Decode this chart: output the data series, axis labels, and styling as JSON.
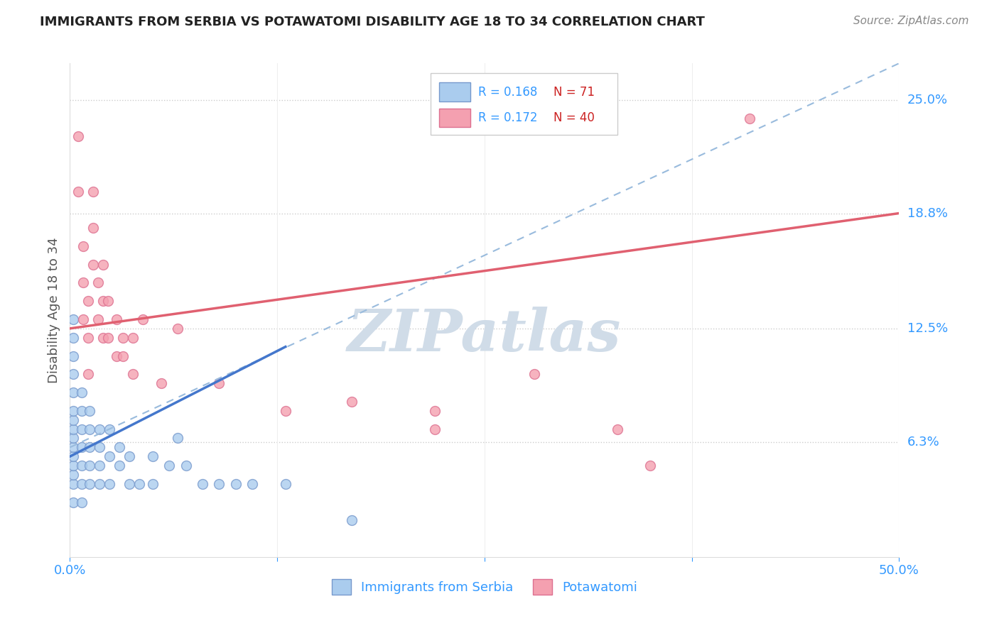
{
  "title": "IMMIGRANTS FROM SERBIA VS POTAWATOMI DISABILITY AGE 18 TO 34 CORRELATION CHART",
  "source": "Source: ZipAtlas.com",
  "ylabel_label": "Disability Age 18 to 34",
  "xlim": [
    0.0,
    0.5
  ],
  "ylim": [
    0.0,
    0.27
  ],
  "xtick_positions": [
    0.0,
    0.125,
    0.25,
    0.375,
    0.5
  ],
  "xtick_labels": [
    "0.0%",
    "",
    "",
    "",
    "50.0%"
  ],
  "ytick_values": [
    0.063,
    0.125,
    0.188,
    0.25
  ],
  "ytick_labels": [
    "6.3%",
    "12.5%",
    "18.8%",
    "25.0%"
  ],
  "grid_color": "#cccccc",
  "background_color": "#ffffff",
  "serbia_color": "#aaccee",
  "serbia_edge_color": "#7799cc",
  "potawatomi_color": "#f4a0b0",
  "potawatomi_edge_color": "#dd7090",
  "serbia_R": 0.168,
  "serbia_N": 71,
  "potawatomi_R": 0.172,
  "potawatomi_N": 40,
  "serbia_trend_x": [
    0.0,
    0.13
  ],
  "serbia_trend_y": [
    0.055,
    0.115
  ],
  "potawatomi_trend_x": [
    0.0,
    0.5
  ],
  "potawatomi_trend_y": [
    0.125,
    0.188
  ],
  "dashed_trend_x": [
    0.0,
    0.5
  ],
  "dashed_trend_y": [
    0.06,
    0.27
  ],
  "serbia_points_x": [
    0.002,
    0.002,
    0.002,
    0.002,
    0.002,
    0.002,
    0.002,
    0.002,
    0.002,
    0.002,
    0.002,
    0.002,
    0.002,
    0.002,
    0.002,
    0.007,
    0.007,
    0.007,
    0.007,
    0.007,
    0.007,
    0.007,
    0.012,
    0.012,
    0.012,
    0.012,
    0.012,
    0.018,
    0.018,
    0.018,
    0.018,
    0.024,
    0.024,
    0.024,
    0.03,
    0.03,
    0.036,
    0.036,
    0.042,
    0.05,
    0.05,
    0.06,
    0.065,
    0.07,
    0.08,
    0.09,
    0.1,
    0.11,
    0.13,
    0.17
  ],
  "serbia_points_y": [
    0.03,
    0.04,
    0.045,
    0.05,
    0.055,
    0.06,
    0.065,
    0.07,
    0.075,
    0.08,
    0.09,
    0.1,
    0.11,
    0.12,
    0.13,
    0.03,
    0.04,
    0.05,
    0.06,
    0.07,
    0.08,
    0.09,
    0.04,
    0.05,
    0.06,
    0.07,
    0.08,
    0.04,
    0.05,
    0.06,
    0.07,
    0.04,
    0.055,
    0.07,
    0.05,
    0.06,
    0.04,
    0.055,
    0.04,
    0.055,
    0.04,
    0.05,
    0.065,
    0.05,
    0.04,
    0.04,
    0.04,
    0.04,
    0.04,
    0.02
  ],
  "potawatomi_points_x": [
    0.005,
    0.005,
    0.008,
    0.008,
    0.008,
    0.011,
    0.011,
    0.011,
    0.014,
    0.014,
    0.014,
    0.017,
    0.017,
    0.02,
    0.02,
    0.02,
    0.023,
    0.023,
    0.028,
    0.028,
    0.032,
    0.032,
    0.038,
    0.038,
    0.044,
    0.055,
    0.065,
    0.09,
    0.13,
    0.17,
    0.22,
    0.22,
    0.28,
    0.33,
    0.35,
    0.41
  ],
  "potawatomi_points_y": [
    0.23,
    0.2,
    0.17,
    0.15,
    0.13,
    0.14,
    0.12,
    0.1,
    0.2,
    0.18,
    0.16,
    0.15,
    0.13,
    0.16,
    0.14,
    0.12,
    0.14,
    0.12,
    0.13,
    0.11,
    0.12,
    0.11,
    0.12,
    0.1,
    0.13,
    0.095,
    0.125,
    0.095,
    0.08,
    0.085,
    0.07,
    0.08,
    0.1,
    0.07,
    0.05,
    0.24
  ],
  "watermark_text": "ZIPatlas",
  "watermark_color": "#d0dce8",
  "legend_box_color": "#ffffff",
  "legend_border_color": "#cccccc",
  "legend_R_color": "#3399ff",
  "legend_N_color": "#cc2222",
  "axis_label_color": "#3399ff",
  "title_color": "#222222",
  "source_color": "#888888"
}
